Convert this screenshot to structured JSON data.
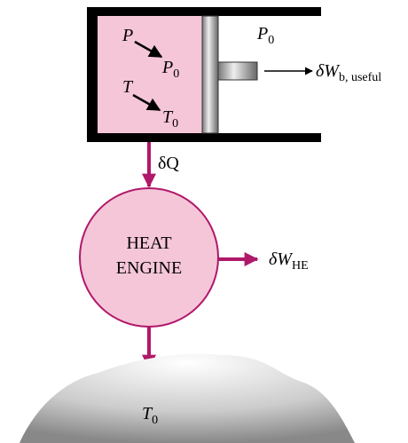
{
  "cylinder": {
    "initial_pressure": "P",
    "final_pressure": {
      "base": "P",
      "sub": "0"
    },
    "initial_temperature": "T",
    "final_temperature": {
      "base": "T",
      "sub": "0"
    },
    "surroundings_pressure": {
      "base": "P",
      "sub": "0"
    },
    "boundary_work": {
      "base": "δW",
      "sub": "b, useful"
    }
  },
  "heat_transfer": "δQ",
  "engine": {
    "line1": "HEAT",
    "line2": "ENGINE",
    "work": {
      "base": "δW",
      "sub": "HE"
    }
  },
  "sink": {
    "base": "T",
    "sub": "0"
  }
}
